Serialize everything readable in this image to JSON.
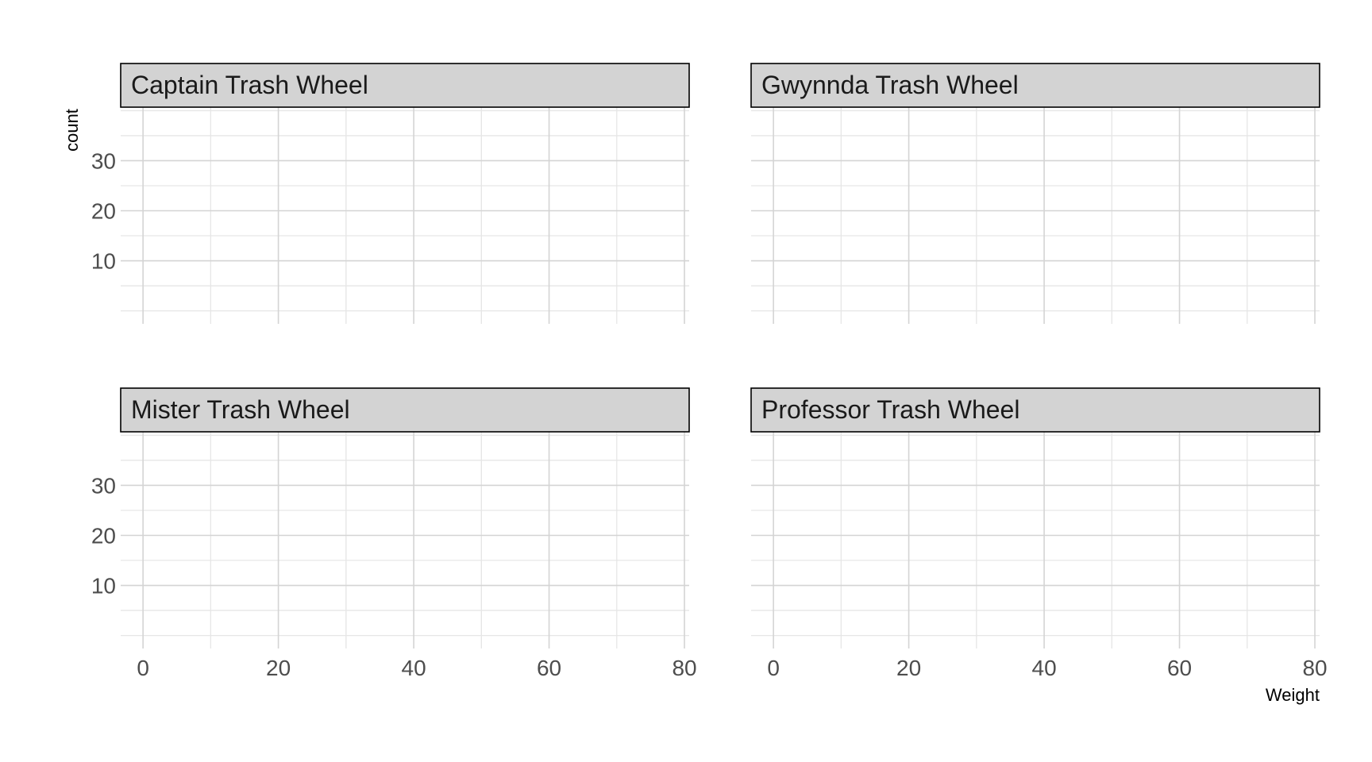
{
  "chart_data": {
    "type": "bar",
    "xlabel": "Weight",
    "ylabel": "count",
    "xlim": [
      -3.3,
      80.7
    ],
    "ylim": [
      -2.6,
      40.7
    ],
    "x_ticks": [
      0,
      20,
      40,
      60,
      80
    ],
    "x_minor_ticks": [
      10,
      30,
      50,
      70
    ],
    "y_ticks": [
      10,
      20,
      30
    ],
    "y_minor_ticks": [
      0,
      5,
      15,
      25,
      35,
      40
    ],
    "grid": true,
    "legend": "none",
    "facets": [
      {
        "label": "Captain Trash Wheel",
        "bins": []
      },
      {
        "label": "Gwynnda Trash Wheel",
        "bins": []
      },
      {
        "label": "Mister Trash Wheel",
        "bins": []
      },
      {
        "label": "Professor Trash Wheel",
        "bins": []
      }
    ]
  },
  "colors": {
    "strip_fill": "#d3d3d3",
    "strip_border": "#000000",
    "grid_major": "#d4d4d4",
    "grid_minor": "#e6e6e6",
    "tick_text": "#4d4d4d",
    "axis_title": "#000000",
    "strip_text": "#1a1a1a"
  }
}
